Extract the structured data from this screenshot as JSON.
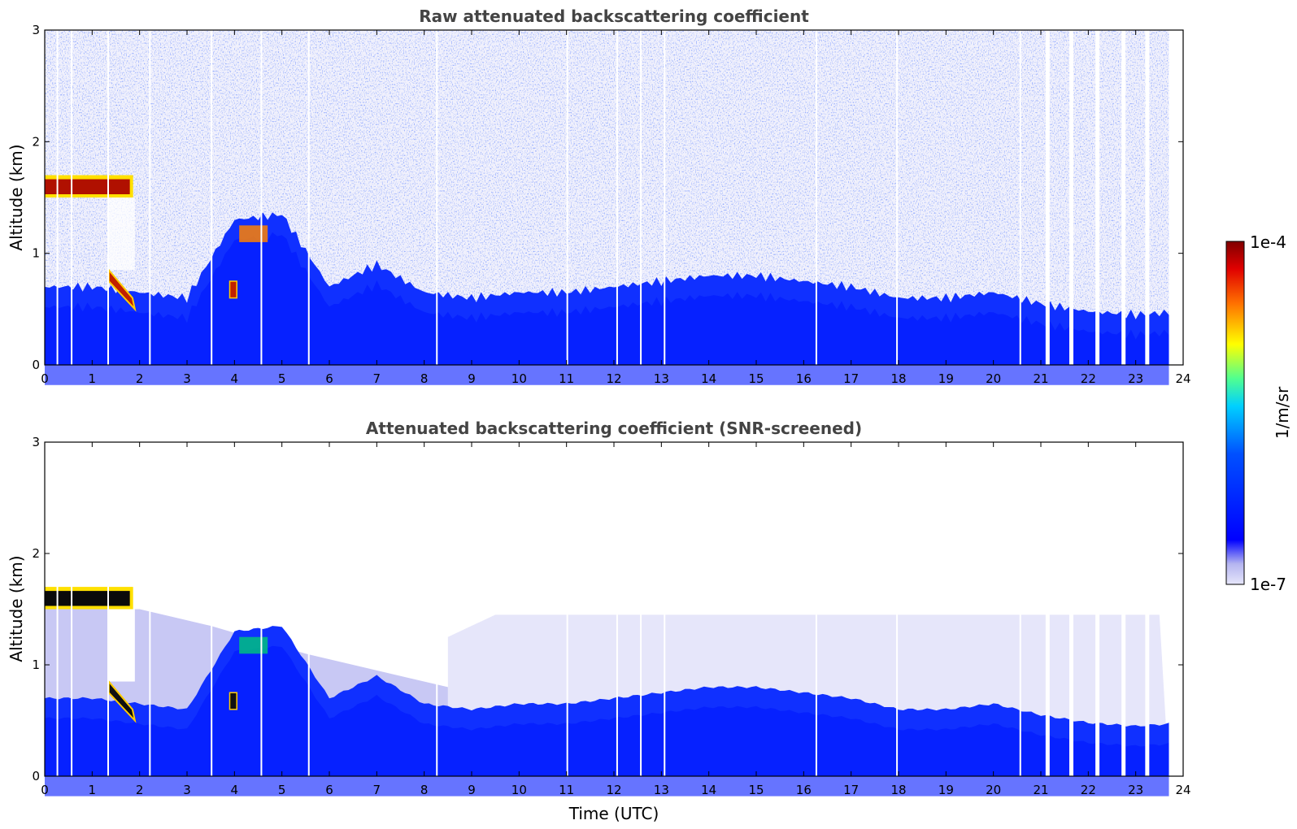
{
  "chart_data": [
    {
      "type": "heatmap",
      "title": "Raw attenuated backscattering coefficient",
      "xlabel": "",
      "ylabel": "Altitude (km)",
      "xlim": [
        0,
        24
      ],
      "ylim": [
        0,
        3
      ],
      "x_ticks": [
        "0",
        "1",
        "2",
        "3",
        "4",
        "5",
        "6",
        "7",
        "8",
        "9",
        "10",
        "11",
        "12",
        "13",
        "14",
        "15",
        "16",
        "17",
        "18",
        "19",
        "20",
        "21",
        "22",
        "23",
        "24"
      ],
      "y_ticks": [
        "0",
        "1",
        "2",
        "3"
      ],
      "cloud_layer_km": [
        1.5,
        1.7
      ],
      "cloud_layer_hours": [
        0,
        2
      ],
      "boundary_layer_top_km": [
        [
          0,
          0.7
        ],
        [
          1,
          0.7
        ],
        [
          2,
          0.65
        ],
        [
          3,
          0.6
        ],
        [
          4,
          1.3
        ],
        [
          5,
          1.35
        ],
        [
          6,
          0.7
        ],
        [
          7,
          0.9
        ],
        [
          8,
          0.65
        ],
        [
          9,
          0.6
        ],
        [
          10,
          0.65
        ],
        [
          11,
          0.65
        ],
        [
          12,
          0.7
        ],
        [
          13,
          0.75
        ],
        [
          14,
          0.8
        ],
        [
          15,
          0.8
        ],
        [
          16,
          0.75
        ],
        [
          17,
          0.7
        ],
        [
          18,
          0.6
        ],
        [
          19,
          0.6
        ],
        [
          20,
          0.65
        ],
        [
          21,
          0.55
        ],
        [
          22,
          0.48
        ],
        [
          23,
          0.45
        ],
        [
          23.7,
          0.47
        ]
      ]
    },
    {
      "type": "heatmap",
      "title": "Attenuated backscattering coefficient (SNR-screened)",
      "xlabel": "Time (UTC)",
      "ylabel": "Altitude (km)",
      "xlim": [
        0,
        24
      ],
      "ylim": [
        0,
        3
      ],
      "x_ticks": [
        "0",
        "1",
        "2",
        "3",
        "4",
        "5",
        "6",
        "7",
        "8",
        "9",
        "10",
        "11",
        "12",
        "13",
        "14",
        "15",
        "16",
        "17",
        "18",
        "19",
        "20",
        "21",
        "22",
        "23",
        "24"
      ],
      "y_ticks": [
        "0",
        "1",
        "2",
        "3"
      ],
      "cloud_layer_km": [
        1.5,
        1.7
      ],
      "cloud_layer_hours": [
        0,
        2
      ],
      "residual_layer_top_km": 1.45
    }
  ],
  "colorbar": {
    "label": "1/m/sr",
    "max_label": "1e-4",
    "min_label": "1e-7",
    "scale": "log",
    "range": [
      1e-07,
      0.0001
    ],
    "colormap": [
      "#e6e6fa",
      "#b4b4f0",
      "#0000ff",
      "#00c8ff",
      "#ffff00",
      "#ff6400",
      "#800000"
    ]
  },
  "colors": {
    "signal_blue": "#1030ff",
    "faint": "#e6e6fa",
    "cloud": "#b01000",
    "frame": "#000000"
  }
}
